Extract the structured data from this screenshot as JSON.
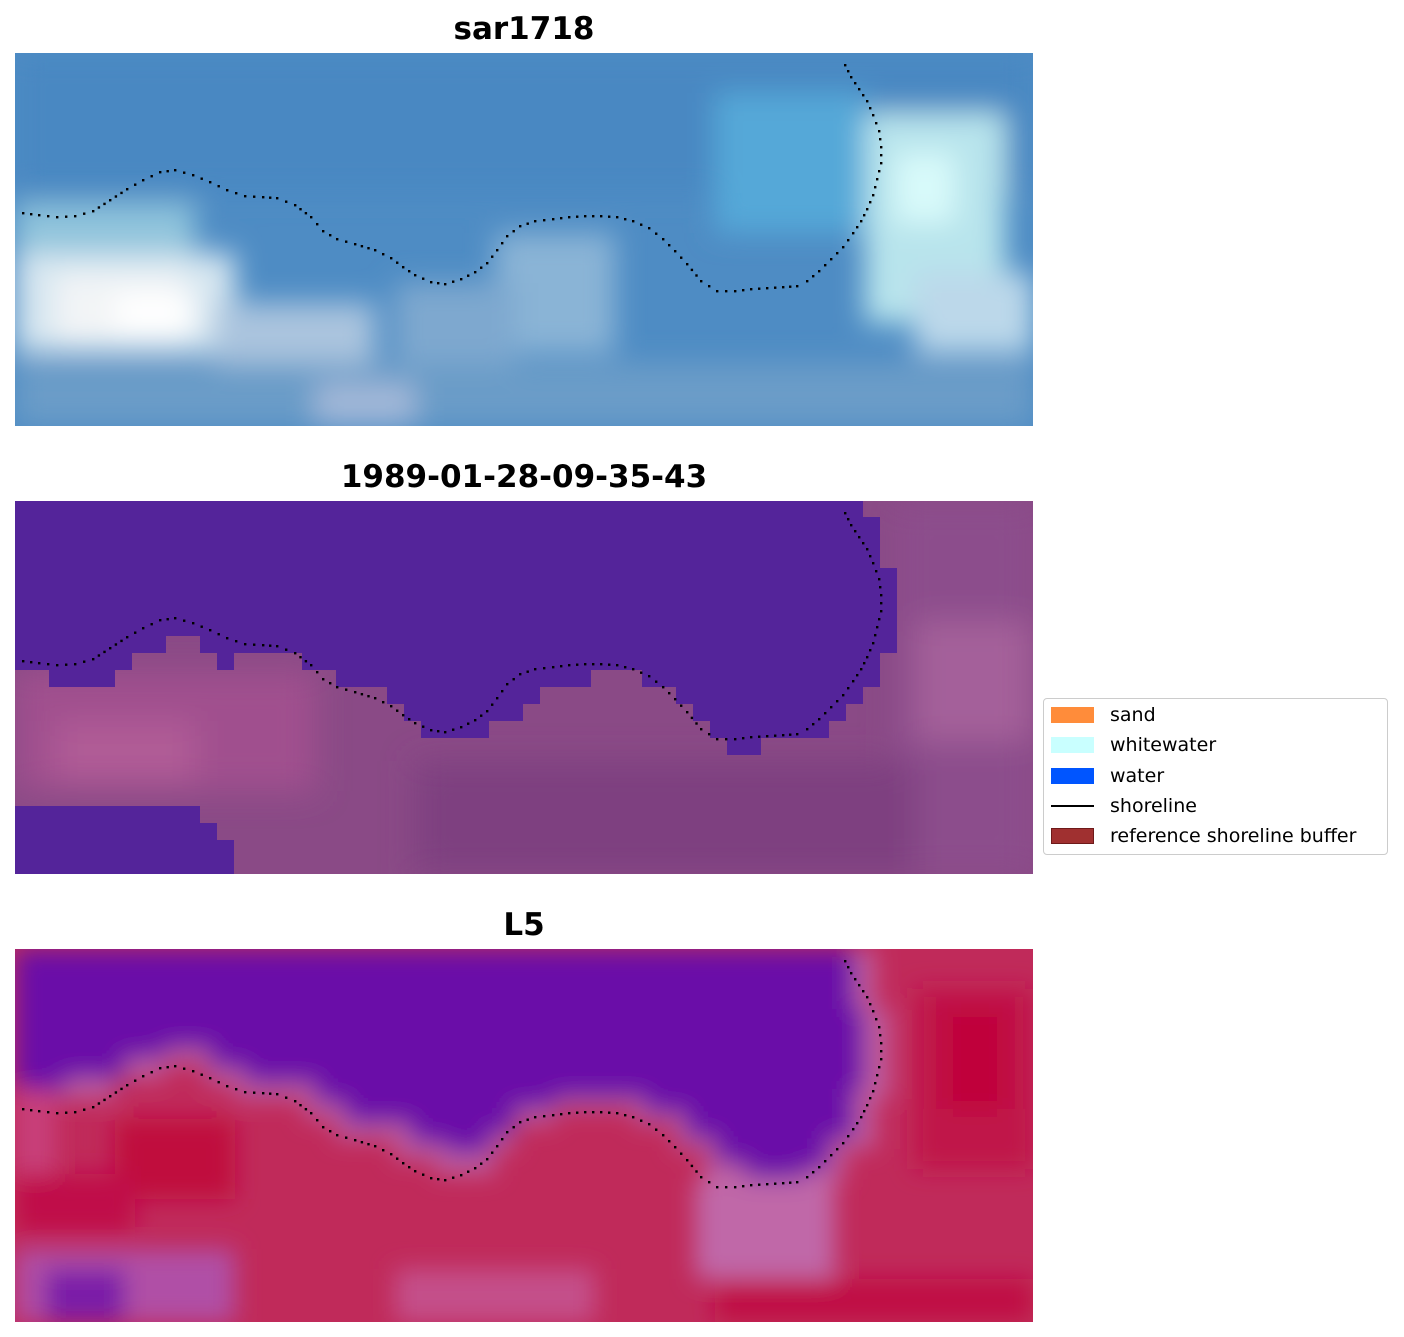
{
  "panels": [
    {
      "title": "sar1718"
    },
    {
      "title": "1989-01-28-09-35-43"
    },
    {
      "title": "L5"
    }
  ],
  "legend": {
    "items": [
      {
        "label": "sand",
        "color": "#ff8c3a",
        "kind": "patch"
      },
      {
        "label": "whitewater",
        "color": "#c9ffff",
        "kind": "patch"
      },
      {
        "label": "water",
        "color": "#0055ff",
        "kind": "patch"
      },
      {
        "label": "shoreline",
        "color": "#000000",
        "kind": "line"
      },
      {
        "label": "reference shoreline buffer",
        "color": "#a03030",
        "kind": "patch"
      }
    ]
  }
}
